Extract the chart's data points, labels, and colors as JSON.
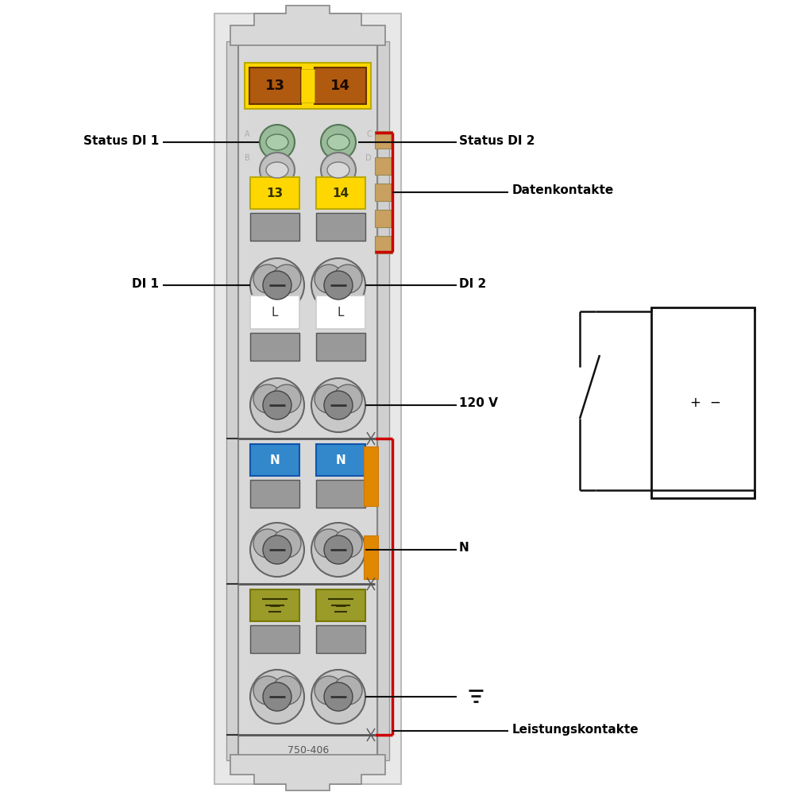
{
  "title_label": "750-406",
  "labels": {
    "status_di1": "Status DI 1",
    "status_di2": "Status DI 2",
    "datenkontakte": "Datenkontakte",
    "di1": "DI 1",
    "di2": "DI 2",
    "v120": "120 V",
    "n": "N",
    "ground_sym": "⊥",
    "leistungskontakte": "Leistungskontakte"
  },
  "yellow_color": "#FFD700",
  "brown_color": "#B05A10",
  "blue_color": "#3388CC",
  "olive_color": "#9B9B2A",
  "orange_color": "#E08800",
  "green_led_color": "#99BB99",
  "red_line_color": "#CC0000",
  "tan_color": "#C8A060",
  "gray_light": "#d0d0d0",
  "gray_med": "#999999",
  "gray_dark": "#666666",
  "white": "#FFFFFF",
  "module_bg": "#e0e0e0",
  "outer_frame": "#cccccc"
}
